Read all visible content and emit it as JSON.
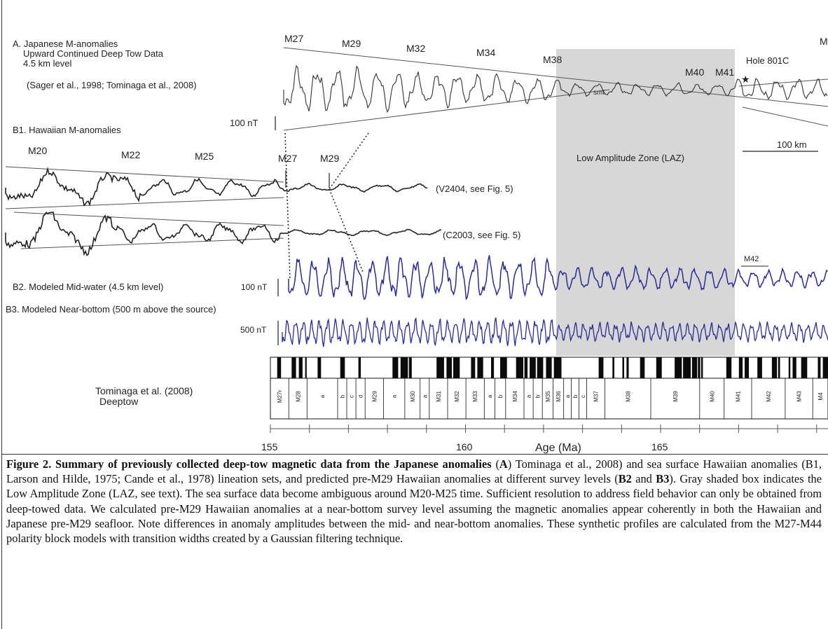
{
  "panel_a": {
    "line1": "A.  Japanese M-anomalies",
    "line2": "Upward Continued Deep Tow Data",
    "line3": "4.5 km level",
    "refs": "(Sager et al., 1998; Tominaga et al., 2008)",
    "scale": "100 nT",
    "chrons": [
      "M27",
      "M29",
      "M32",
      "M34",
      "M38",
      "M40",
      "M41",
      "M"
    ],
    "hole": "Hole 801C",
    "smt": "smt"
  },
  "panel_b1": {
    "title": "B1. Hawaiian M-anomalies",
    "chrons": [
      "M20",
      "M22",
      "M25",
      "M27",
      "M29"
    ],
    "profile1": "(V2404, see Fig. 5)",
    "profile2": "(C2003, see Fig. 5)"
  },
  "laz": {
    "label": "Low Amplitude Zone (LAZ)",
    "scalebar": "100 km"
  },
  "panel_b2": {
    "title": "B2. Modeled  Mid-water (4.5 km level)",
    "scale": "100 nT",
    "marker": "M42"
  },
  "panel_b3": {
    "title": "B3. Modeled Near-bottom (500 m above the source)",
    "scale": "500 nT"
  },
  "timescale": {
    "source1": "Tominaga et al. (2008)",
    "source2": "Deeptow",
    "blocks": [
      "M27r",
      "M28",
      "a",
      "b",
      "c",
      "d",
      "M29",
      "a",
      "M30",
      "a",
      "M31",
      "M32",
      "M33",
      "a",
      "b",
      "M34",
      "a",
      "b",
      "M35",
      "M36",
      "a",
      "b",
      "c",
      "M37",
      "M38",
      "M39",
      "M40",
      "M41",
      "M42",
      "M43",
      "M4"
    ],
    "ticks": [
      "155",
      "160",
      "165"
    ],
    "axis_label": "Age (Ma)"
  },
  "caption": {
    "bold_lead": "Figure 2. Summary of previously collected deep-tow magnetic data from the Japanese anomalies",
    "seg1": " (",
    "bold_a": "A",
    "seg2": ") Tominaga et al., 2008) and sea surface Hawaiian anomalies (B1, Larson and Hilde, 1975; Cande et al., 1978) lineation sets, and predicted pre-M29 Hawaiian anomalies at different survey levels (",
    "bold_b2": "B2",
    "seg3": " and ",
    "bold_b3": "B3",
    "seg4": "). Gray shaded box indicates the Low Amplitude Zone (LAZ, see text). The sea surface data become ambiguous around M20-M25 time.  Sufficient resolution to address field behavior can only be obtained from deep-towed data. We calculated pre-M29 Hawaiian anomalies at a near-bottom survey level assuming the magnetic anomalies appear coherently in both the Hawaiian and Japanese pre-M29 seafloor. Note differences in anomaly amplitudes between the mid- and near-bottom anomalies. These synthetic profiles are calculated from the M27-M44 polarity block models with transition widths created by a Gaussian filtering technique."
  }
}
